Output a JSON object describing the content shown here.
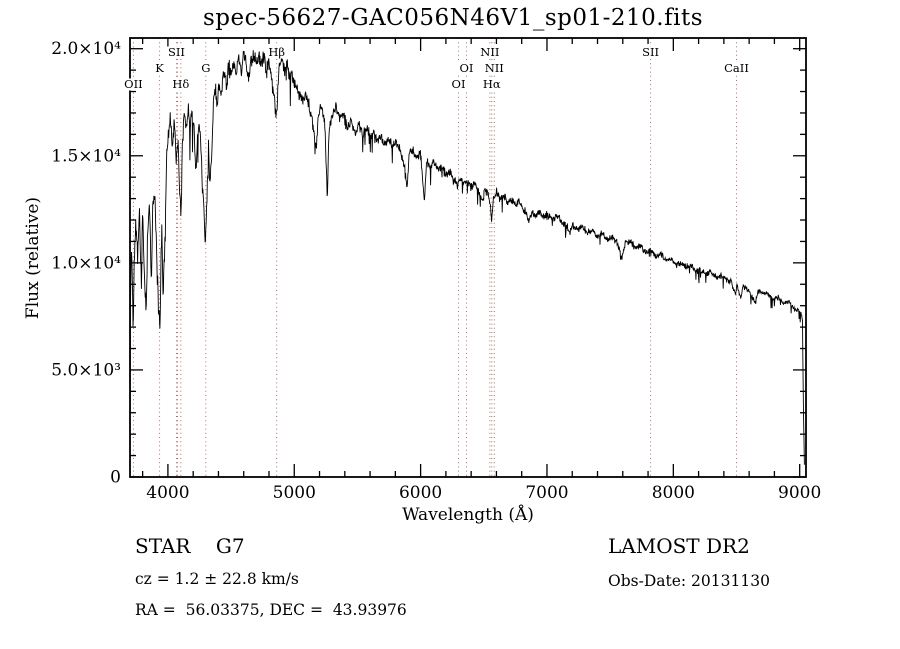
{
  "title": "spec-56627-GAC056N46V1_sp01-210.fits",
  "footer": {
    "class_label": "STAR    G7",
    "survey": "LAMOST DR2",
    "cz": "cz = 1.2 ± 22.8 km/s",
    "obs_date": "Obs-Date: 20131130",
    "radec": "RA =  56.03375, DEC =  43.93976"
  },
  "chart_data": {
    "type": "line",
    "title": "spec-56627-GAC056N46V1_sp01-210.fits",
    "xlabel": "Wavelength (Å)",
    "ylabel": "Flux (relative)",
    "xlim": [
      3700,
      9050
    ],
    "ylim": [
      0,
      20500
    ],
    "grid": false,
    "line_color": "#000000",
    "frame_color": "#000000",
    "marker_color": "#b26b6b",
    "x_ticks": [
      {
        "v": 4000,
        "label": "4000"
      },
      {
        "v": 5000,
        "label": "5000"
      },
      {
        "v": 6000,
        "label": "6000"
      },
      {
        "v": 7000,
        "label": "7000"
      },
      {
        "v": 8000,
        "label": "8000"
      },
      {
        "v": 9000,
        "label": "9000"
      }
    ],
    "y_ticks": [
      {
        "v": 0,
        "label": "0"
      },
      {
        "v": 5000,
        "label": "5.0×10³"
      },
      {
        "v": 10000,
        "label": "1.0×10⁴"
      },
      {
        "v": 15000,
        "label": "1.5×10⁴"
      },
      {
        "v": 20000,
        "label": "2.0×10⁴"
      }
    ],
    "x_minor_step": 200,
    "y_minor_step": 1000,
    "spectral_lines": [
      {
        "label": "OII",
        "wavelength": 3727,
        "row": 3
      },
      {
        "label": "K",
        "wavelength": 3934,
        "row": 2
      },
      {
        "label": "SII",
        "wavelength": 4068,
        "row": 1
      },
      {
        "label": "",
        "wavelength": 4076,
        "row": 0
      },
      {
        "label": "Hδ",
        "wavelength": 4102,
        "row": 3
      },
      {
        "label": "G",
        "wavelength": 4300,
        "row": 2
      },
      {
        "label": "Hβ",
        "wavelength": 4861,
        "row": 1
      },
      {
        "label": "OI",
        "wavelength": 6300,
        "row": 3
      },
      {
        "label": "OI",
        "wavelength": 6363,
        "row": 2
      },
      {
        "label": "NII",
        "wavelength": 6548,
        "row": 1
      },
      {
        "label": "Hα",
        "wavelength": 6563,
        "row": 3
      },
      {
        "label": "NII",
        "wavelength": 6583,
        "row": 2
      },
      {
        "label": "SII",
        "wavelength": 7820,
        "row": 1
      },
      {
        "label": "CaII",
        "wavelength": 8500,
        "row": 2
      }
    ],
    "flux_envelope": [
      [
        3700,
        100
      ],
      [
        3703,
        8000
      ],
      [
        3710,
        10800
      ],
      [
        3718,
        9500
      ],
      [
        3726,
        6800
      ],
      [
        3734,
        10500
      ],
      [
        3745,
        11800
      ],
      [
        3760,
        10500
      ],
      [
        3775,
        12200
      ],
      [
        3790,
        8800
      ],
      [
        3800,
        12400
      ],
      [
        3815,
        9200
      ],
      [
        3827,
        7600
      ],
      [
        3840,
        11500
      ],
      [
        3855,
        12800
      ],
      [
        3870,
        9000
      ],
      [
        3880,
        12500
      ],
      [
        3895,
        13200
      ],
      [
        3910,
        10500
      ],
      [
        3925,
        8000
      ],
      [
        3938,
        6900
      ],
      [
        3950,
        12500
      ],
      [
        3962,
        8200
      ],
      [
        3975,
        11000
      ],
      [
        3990,
        14800
      ],
      [
        4005,
        15800
      ],
      [
        4020,
        16900
      ],
      [
        4035,
        15200
      ],
      [
        4050,
        16800
      ],
      [
        4065,
        14800
      ],
      [
        4080,
        15800
      ],
      [
        4094,
        13200
      ],
      [
        4104,
        12400
      ],
      [
        4115,
        15600
      ],
      [
        4130,
        17000
      ],
      [
        4145,
        16200
      ],
      [
        4160,
        17200
      ],
      [
        4175,
        16400
      ],
      [
        4190,
        17000
      ],
      [
        4205,
        16200
      ],
      [
        4220,
        14200
      ],
      [
        4235,
        15800
      ],
      [
        4250,
        16400
      ],
      [
        4265,
        15000
      ],
      [
        4280,
        13200
      ],
      [
        4295,
        10800
      ],
      [
        4308,
        12600
      ],
      [
        4320,
        15600
      ],
      [
        4332,
        13800
      ],
      [
        4345,
        14600
      ],
      [
        4360,
        17600
      ],
      [
        4375,
        18200
      ],
      [
        4390,
        17200
      ],
      [
        4405,
        18400
      ],
      [
        4420,
        17800
      ],
      [
        4435,
        18800
      ],
      [
        4450,
        19000
      ],
      [
        4465,
        18200
      ],
      [
        4480,
        19200
      ],
      [
        4500,
        18800
      ],
      [
        4520,
        19400
      ],
      [
        4540,
        18800
      ],
      [
        4560,
        19600
      ],
      [
        4580,
        19000
      ],
      [
        4600,
        19700
      ],
      [
        4620,
        19200
      ],
      [
        4640,
        18600
      ],
      [
        4660,
        19400
      ],
      [
        4680,
        19800
      ],
      [
        4700,
        19300
      ],
      [
        4720,
        19800
      ],
      [
        4740,
        19200
      ],
      [
        4760,
        19600
      ],
      [
        4780,
        18900
      ],
      [
        4800,
        19400
      ],
      [
        4820,
        18600
      ],
      [
        4840,
        17800
      ],
      [
        4855,
        16900
      ],
      [
        4866,
        17600
      ],
      [
        4880,
        19200
      ],
      [
        4900,
        19700
      ],
      [
        4920,
        18900
      ],
      [
        4940,
        19400
      ],
      [
        4960,
        18700
      ],
      [
        4980,
        19000
      ],
      [
        5000,
        18400
      ],
      [
        5030,
        18000
      ],
      [
        5060,
        17600
      ],
      [
        5090,
        17900
      ],
      [
        5120,
        17300
      ],
      [
        5150,
        16400
      ],
      [
        5172,
        15300
      ],
      [
        5190,
        16800
      ],
      [
        5215,
        17300
      ],
      [
        5240,
        16800
      ],
      [
        5262,
        12900
      ],
      [
        5275,
        16200
      ],
      [
        5300,
        17000
      ],
      [
        5330,
        17300
      ],
      [
        5360,
        16700
      ],
      [
        5390,
        16900
      ],
      [
        5420,
        16300
      ],
      [
        5450,
        16700
      ],
      [
        5480,
        16100
      ],
      [
        5510,
        16400
      ],
      [
        5540,
        16000
      ],
      [
        5570,
        16300
      ],
      [
        5600,
        15900
      ],
      [
        5630,
        16100
      ],
      [
        5660,
        15700
      ],
      [
        5690,
        15900
      ],
      [
        5720,
        15600
      ],
      [
        5750,
        15800
      ],
      [
        5780,
        15400
      ],
      [
        5810,
        15600
      ],
      [
        5840,
        15200
      ],
      [
        5870,
        14600
      ],
      [
        5893,
        13400
      ],
      [
        5910,
        15100
      ],
      [
        5940,
        15300
      ],
      [
        5970,
        14900
      ],
      [
        6000,
        15100
      ],
      [
        6030,
        12900
      ],
      [
        6045,
        14700
      ],
      [
        6080,
        14500
      ],
      [
        6110,
        14700
      ],
      [
        6140,
        14300
      ],
      [
        6170,
        14500
      ],
      [
        6200,
        14100
      ],
      [
        6230,
        14300
      ],
      [
        6260,
        13900
      ],
      [
        6290,
        13600
      ],
      [
        6310,
        13900
      ],
      [
        6340,
        13700
      ],
      [
        6370,
        13900
      ],
      [
        6400,
        13500
      ],
      [
        6430,
        13700
      ],
      [
        6460,
        13300
      ],
      [
        6490,
        12900
      ],
      [
        6510,
        13400
      ],
      [
        6540,
        13100
      ],
      [
        6556,
        12400
      ],
      [
        6563,
        11900
      ],
      [
        6575,
        12900
      ],
      [
        6600,
        13300
      ],
      [
        6630,
        13000
      ],
      [
        6660,
        13200
      ],
      [
        6690,
        12800
      ],
      [
        6720,
        13000
      ],
      [
        6750,
        12700
      ],
      [
        6780,
        12900
      ],
      [
        6810,
        12500
      ],
      [
        6840,
        12300
      ],
      [
        6860,
        11900
      ],
      [
        6880,
        12400
      ],
      [
        6910,
        12200
      ],
      [
        6940,
        12400
      ],
      [
        6970,
        12100
      ],
      [
        7000,
        12300
      ],
      [
        7040,
        12000
      ],
      [
        7080,
        12200
      ],
      [
        7120,
        11900
      ],
      [
        7160,
        11700
      ],
      [
        7180,
        11300
      ],
      [
        7200,
        11800
      ],
      [
        7240,
        11500
      ],
      [
        7280,
        11700
      ],
      [
        7320,
        11400
      ],
      [
        7360,
        11500
      ],
      [
        7400,
        11200
      ],
      [
        7440,
        11400
      ],
      [
        7480,
        11100
      ],
      [
        7520,
        11200
      ],
      [
        7560,
        10900
      ],
      [
        7594,
        10300
      ],
      [
        7620,
        10900
      ],
      [
        7660,
        11000
      ],
      [
        7700,
        10700
      ],
      [
        7740,
        10800
      ],
      [
        7780,
        10500
      ],
      [
        7820,
        10600
      ],
      [
        7860,
        10300
      ],
      [
        7900,
        10400
      ],
      [
        7940,
        10100
      ],
      [
        7980,
        10200
      ],
      [
        8020,
        9900
      ],
      [
        8060,
        10000
      ],
      [
        8100,
        9800
      ],
      [
        8140,
        9900
      ],
      [
        8180,
        9600
      ],
      [
        8220,
        9700
      ],
      [
        8260,
        9500
      ],
      [
        8300,
        9600
      ],
      [
        8340,
        9300
      ],
      [
        8380,
        9400
      ],
      [
        8420,
        9200
      ],
      [
        8460,
        9100
      ],
      [
        8490,
        8500
      ],
      [
        8505,
        9000
      ],
      [
        8535,
        8300
      ],
      [
        8550,
        8900
      ],
      [
        8590,
        8800
      ],
      [
        8650,
        8100
      ],
      [
        8670,
        8700
      ],
      [
        8710,
        8600
      ],
      [
        8750,
        8500
      ],
      [
        8790,
        8300
      ],
      [
        8830,
        8400
      ],
      [
        8870,
        8100
      ],
      [
        8910,
        8200
      ],
      [
        8950,
        7900
      ],
      [
        8990,
        7800
      ],
      [
        9010,
        7600
      ],
      [
        9022,
        7400
      ],
      [
        9030,
        3000
      ],
      [
        9038,
        300
      ]
    ],
    "noise_amplitude": [
      [
        3700,
        650
      ],
      [
        4200,
        520
      ],
      [
        4800,
        420
      ],
      [
        5500,
        320
      ],
      [
        6200,
        260
      ],
      [
        7000,
        210
      ],
      [
        8000,
        170
      ],
      [
        9040,
        150
      ]
    ],
    "noise_seed": 42
  }
}
